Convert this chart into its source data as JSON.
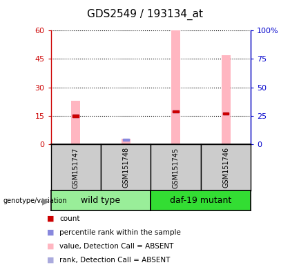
{
  "title": "GDS2549 / 193134_at",
  "samples": [
    "GSM151747",
    "GSM151748",
    "GSM151745",
    "GSM151746"
  ],
  "pink_bar_values": [
    23,
    3,
    60,
    47
  ],
  "blue_square_values_pct": [
    25,
    4,
    29,
    27
  ],
  "red_square_values_pct": [
    25,
    null,
    29,
    27
  ],
  "groups": [
    {
      "label": "wild type",
      "indices": [
        0,
        1
      ],
      "color": "#99EE99"
    },
    {
      "label": "daf-19 mutant",
      "indices": [
        2,
        3
      ],
      "color": "#33DD33"
    }
  ],
  "ylim_left": [
    0,
    60
  ],
  "ylim_right": [
    0,
    100
  ],
  "yticks_left": [
    0,
    15,
    30,
    45,
    60
  ],
  "yticks_right": [
    0,
    25,
    50,
    75,
    100
  ],
  "ytick_labels_right": [
    "0",
    "25",
    "50",
    "75",
    "100%"
  ],
  "pink_color": "#FFB6C1",
  "blue_color": "#8888DD",
  "red_color": "#CC0000",
  "left_tick_color": "#CC0000",
  "right_tick_color": "#0000CC",
  "sample_box_color": "#CCCCCC",
  "label_font_size": 8,
  "title_font_size": 11,
  "legend_font_size": 7.5,
  "group_label_font_size": 9,
  "sample_font_size": 7
}
